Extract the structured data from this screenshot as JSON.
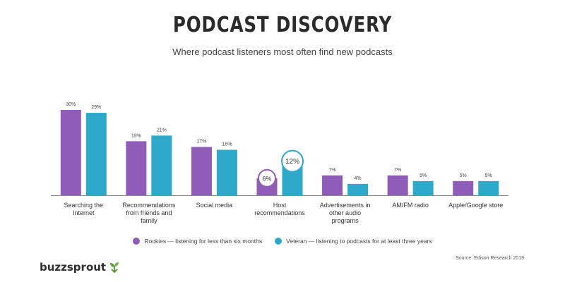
{
  "chart_data": {
    "type": "bar",
    "title": "PODCAST DISCOVERY",
    "subtitle": "Where podcast listeners most often find new podcasts",
    "categories": [
      [
        "Searching the",
        "Internet"
      ],
      [
        "Recommendations",
        "from friends and",
        "family"
      ],
      [
        "Social media"
      ],
      [
        "Host",
        "recommendations"
      ],
      [
        "Advertisements in",
        "other audio",
        "programs"
      ],
      [
        "AM/FM radio"
      ],
      [
        "Apple/Google store"
      ]
    ],
    "series": [
      {
        "name": "Rookies — listening for less than six months",
        "color": "#8f5db7",
        "values": [
          30,
          19,
          17,
          6,
          7,
          7,
          5
        ]
      },
      {
        "name": "Veteran — listening to podcasts for at least three years",
        "color": "#2ea9c9",
        "values": [
          29,
          21,
          16,
          12,
          4,
          5,
          5
        ]
      }
    ],
    "value_suffix": "%",
    "highlight_category_index": 3,
    "ylim": [
      0,
      30
    ],
    "grid": false,
    "legend_position": "bottom",
    "source": "Source: Edison Research 2019"
  },
  "brand": {
    "name": "buzzsprout",
    "icon": "sprout-icon",
    "icon_color": "#5a9e3a"
  }
}
